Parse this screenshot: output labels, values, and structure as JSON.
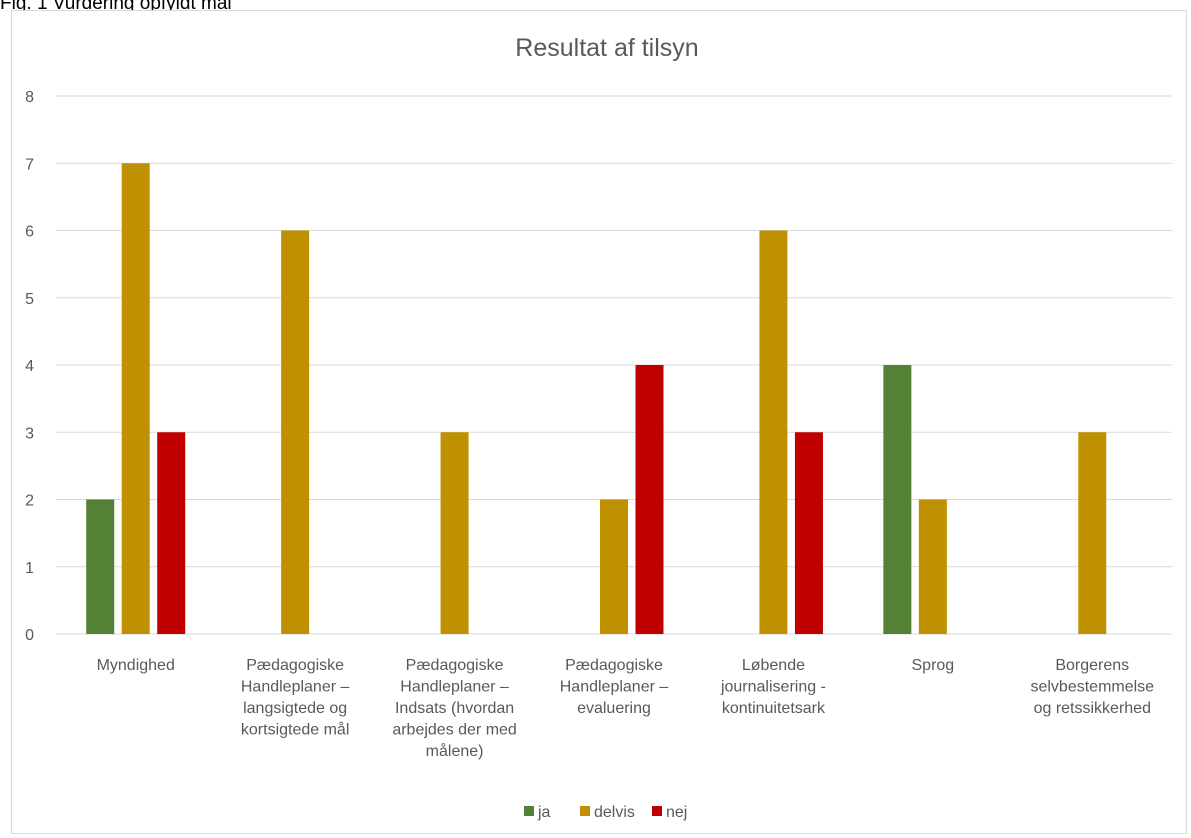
{
  "caption": "Fig. 1 Vurdering opfyldt mål",
  "chart_data": {
    "type": "bar",
    "title": "Resultat af tilsyn",
    "xlabel": "",
    "ylabel": "",
    "ylim": [
      0,
      8
    ],
    "yticks": [
      0,
      1,
      2,
      3,
      4,
      5,
      6,
      7,
      8
    ],
    "grid": true,
    "legend_position": "bottom",
    "categories": [
      "Myndighed",
      "Pædagogiske Handleplaner – langsigtede og kortsigtede mål",
      "Pædagogiske Handleplaner – Indsats (hvordan arbejdes der med målene)",
      "Pædagogiske Handleplaner – evaluering",
      "Løbende journalisering - kontinuitetsark",
      "Sprog",
      "Borgerens selvbestemmelse og retssikkerhed"
    ],
    "category_label_lines": [
      [
        "Myndighed"
      ],
      [
        "Pædagogiske",
        "Handleplaner –",
        "langsigtede og",
        "kortsigtede mål"
      ],
      [
        "Pædagogiske",
        "Handleplaner –",
        "Indsats (hvordan",
        "arbejdes der med",
        "målene)"
      ],
      [
        "Pædagogiske",
        "Handleplaner –",
        "evaluering"
      ],
      [
        "Løbende",
        "journalisering -",
        "kontinuitetsark"
      ],
      [
        "Sprog"
      ],
      [
        "Borgerens",
        "selvbestemmelse",
        "og retssikkerhed"
      ]
    ],
    "series": [
      {
        "name": "ja",
        "color": "#538135",
        "values": [
          2,
          null,
          null,
          null,
          null,
          4,
          null
        ]
      },
      {
        "name": "delvis",
        "color": "#bf9000",
        "values": [
          7,
          6,
          3,
          2,
          6,
          2,
          3
        ]
      },
      {
        "name": "nej",
        "color": "#c00000",
        "values": [
          3,
          null,
          null,
          4,
          3,
          null,
          null
        ]
      }
    ]
  }
}
